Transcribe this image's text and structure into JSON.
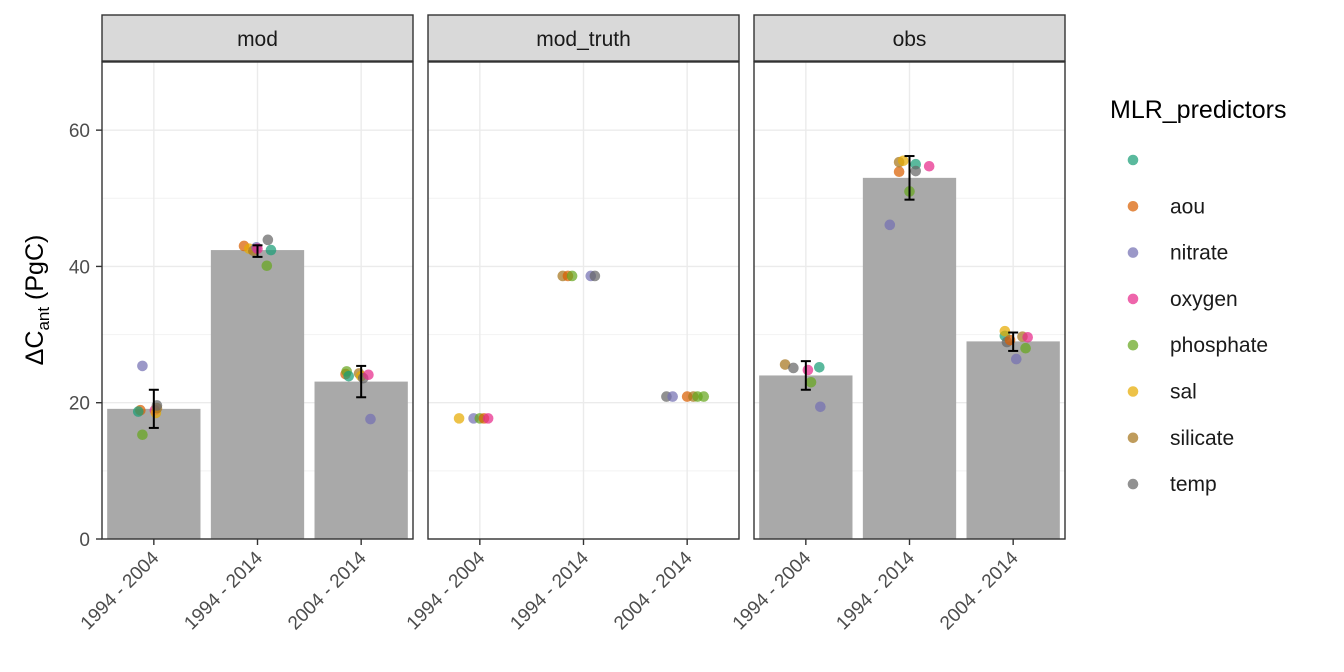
{
  "chart_data": {
    "type": "bar",
    "ylabel": {
      "prefix": "ΔC",
      "subscript": "ant",
      "suffix": " (PgC)"
    },
    "ylim": [
      0,
      70
    ],
    "yticks": [
      0,
      20,
      40,
      60
    ],
    "grid": true,
    "legend_position": "right",
    "legend": {
      "title": "MLR_predictors",
      "entries": [
        {
          "label": "",
          "color": "#1b9e77"
        },
        {
          "label": "aou",
          "color": "#d95f02"
        },
        {
          "label": "nitrate",
          "color": "#7570b3"
        },
        {
          "label": "oxygen",
          "color": "#e7298a"
        },
        {
          "label": "phosphate",
          "color": "#66a61e"
        },
        {
          "label": "sal",
          "color": "#e6ab02"
        },
        {
          "label": "silicate",
          "color": "#a6761d"
        },
        {
          "label": "temp",
          "color": "#666666"
        }
      ]
    },
    "bar_color": "#a9a9a9",
    "categories": [
      "1994 - 2004",
      "1994 - 2014",
      "2004 - 2014"
    ],
    "panels": [
      {
        "name": "mod",
        "bars": [
          19.1,
          42.4,
          23.1
        ],
        "errors": [
          [
            16.3,
            21.9
          ],
          [
            41.4,
            43.1
          ],
          [
            20.8,
            25.4
          ]
        ],
        "points": [
          {
            "cat": 0,
            "jitter": -0.13,
            "y": 18.9,
            "series": "aou"
          },
          {
            "cat": 0,
            "jitter": -0.11,
            "y": 25.4,
            "series": "nitrate"
          },
          {
            "cat": 0,
            "jitter": -0.11,
            "y": 15.3,
            "series": "phosphate"
          },
          {
            "cat": 0,
            "jitter": 0.01,
            "y": 18.9,
            "series": "oxygen"
          },
          {
            "cat": 0,
            "jitter": 0.02,
            "y": 18.5,
            "series": "sal"
          },
          {
            "cat": 0,
            "jitter": 0.03,
            "y": 19.2,
            "series": "silicate"
          },
          {
            "cat": 0,
            "jitter": 0.03,
            "y": 19.6,
            "series": "temp"
          },
          {
            "cat": 0,
            "jitter": -0.15,
            "y": 18.7,
            "series": ""
          },
          {
            "cat": 1,
            "jitter": -0.13,
            "y": 43.0,
            "series": "aou"
          },
          {
            "cat": 1,
            "jitter": -0.08,
            "y": 42.6,
            "series": "sal"
          },
          {
            "cat": 1,
            "jitter": -0.04,
            "y": 42.3,
            "series": "silicate"
          },
          {
            "cat": 1,
            "jitter": -0.01,
            "y": 42.8,
            "series": "nitrate"
          },
          {
            "cat": 1,
            "jitter": 0.0,
            "y": 42.6,
            "series": "oxygen"
          },
          {
            "cat": 1,
            "jitter": 0.09,
            "y": 40.1,
            "series": "phosphate"
          },
          {
            "cat": 1,
            "jitter": 0.1,
            "y": 43.9,
            "series": "temp"
          },
          {
            "cat": 1,
            "jitter": 0.13,
            "y": 42.4,
            "series": ""
          },
          {
            "cat": 2,
            "jitter": -0.15,
            "y": 24.2,
            "series": "aou"
          },
          {
            "cat": 2,
            "jitter": -0.14,
            "y": 24.6,
            "series": "phosphate"
          },
          {
            "cat": 2,
            "jitter": -0.12,
            "y": 23.9,
            "series": ""
          },
          {
            "cat": 2,
            "jitter": -0.02,
            "y": 24.3,
            "series": "silicate"
          },
          {
            "cat": 2,
            "jitter": 0.0,
            "y": 23.9,
            "series": "sal"
          },
          {
            "cat": 2,
            "jitter": 0.02,
            "y": 23.6,
            "series": "temp"
          },
          {
            "cat": 2,
            "jitter": 0.07,
            "y": 24.1,
            "series": "oxygen"
          },
          {
            "cat": 2,
            "jitter": 0.09,
            "y": 17.6,
            "series": "nitrate"
          }
        ]
      },
      {
        "name": "mod_truth",
        "bars": [],
        "errors": [],
        "points": [
          {
            "cat": 0,
            "jitter": -0.2,
            "y": 17.7,
            "series": "sal"
          },
          {
            "cat": 0,
            "jitter": -0.06,
            "y": 17.7,
            "series": "nitrate"
          },
          {
            "cat": 0,
            "jitter": 0.0,
            "y": 17.7,
            "series": "phosphate"
          },
          {
            "cat": 0,
            "jitter": 0.04,
            "y": 17.7,
            "series": "aou"
          },
          {
            "cat": 0,
            "jitter": 0.08,
            "y": 17.7,
            "series": "oxygen"
          },
          {
            "cat": 1,
            "jitter": -0.2,
            "y": 38.6,
            "series": "silicate"
          },
          {
            "cat": 1,
            "jitter": -0.15,
            "y": 38.6,
            "series": "aou"
          },
          {
            "cat": 1,
            "jitter": -0.11,
            "y": 38.6,
            "series": "phosphate"
          },
          {
            "cat": 1,
            "jitter": 0.07,
            "y": 38.6,
            "series": "nitrate"
          },
          {
            "cat": 1,
            "jitter": 0.11,
            "y": 38.6,
            "series": "temp"
          },
          {
            "cat": 2,
            "jitter": -0.2,
            "y": 20.9,
            "series": "temp"
          },
          {
            "cat": 2,
            "jitter": -0.14,
            "y": 20.9,
            "series": "nitrate"
          },
          {
            "cat": 2,
            "jitter": 0.0,
            "y": 20.9,
            "series": "aou"
          },
          {
            "cat": 2,
            "jitter": 0.06,
            "y": 20.9,
            "series": "silicate"
          },
          {
            "cat": 2,
            "jitter": 0.1,
            "y": 20.9,
            "series": "phosphate"
          },
          {
            "cat": 2,
            "jitter": 0.16,
            "y": 20.9,
            "series": "phosphate"
          }
        ]
      },
      {
        "name": "obs",
        "bars": [
          24.0,
          53.0,
          29.0
        ],
        "errors": [
          [
            21.9,
            26.1
          ],
          [
            49.8,
            56.2
          ],
          [
            27.6,
            30.3
          ]
        ],
        "points": [
          {
            "cat": 0,
            "jitter": -0.2,
            "y": 25.6,
            "series": "silicate"
          },
          {
            "cat": 0,
            "jitter": -0.12,
            "y": 25.1,
            "series": "temp"
          },
          {
            "cat": 0,
            "jitter": 0.02,
            "y": 24.8,
            "series": "oxygen"
          },
          {
            "cat": 0,
            "jitter": 0.05,
            "y": 23.0,
            "series": "phosphate"
          },
          {
            "cat": 0,
            "jitter": 0.13,
            "y": 25.2,
            "series": ""
          },
          {
            "cat": 0,
            "jitter": 0.14,
            "y": 19.4,
            "series": "nitrate"
          },
          {
            "cat": 1,
            "jitter": -0.19,
            "y": 46.1,
            "series": "nitrate"
          },
          {
            "cat": 1,
            "jitter": -0.1,
            "y": 53.9,
            "series": "aou"
          },
          {
            "cat": 1,
            "jitter": -0.1,
            "y": 55.3,
            "series": "silicate"
          },
          {
            "cat": 1,
            "jitter": -0.06,
            "y": 55.5,
            "series": "sal"
          },
          {
            "cat": 1,
            "jitter": 0.0,
            "y": 51.0,
            "series": "phosphate"
          },
          {
            "cat": 1,
            "jitter": 0.06,
            "y": 55.0,
            "series": ""
          },
          {
            "cat": 1,
            "jitter": 0.06,
            "y": 54.0,
            "series": "temp"
          },
          {
            "cat": 1,
            "jitter": 0.19,
            "y": 54.7,
            "series": "oxygen"
          },
          {
            "cat": 2,
            "jitter": -0.08,
            "y": 29.8,
            "series": ""
          },
          {
            "cat": 2,
            "jitter": -0.08,
            "y": 30.5,
            "series": "sal"
          },
          {
            "cat": 2,
            "jitter": -0.06,
            "y": 28.9,
            "series": "temp"
          },
          {
            "cat": 2,
            "jitter": -0.03,
            "y": 29.2,
            "series": "aou"
          },
          {
            "cat": 2,
            "jitter": 0.03,
            "y": 26.4,
            "series": "nitrate"
          },
          {
            "cat": 2,
            "jitter": 0.09,
            "y": 29.7,
            "series": "silicate"
          },
          {
            "cat": 2,
            "jitter": 0.12,
            "y": 28.0,
            "series": "phosphate"
          },
          {
            "cat": 2,
            "jitter": 0.14,
            "y": 29.6,
            "series": "oxygen"
          }
        ]
      }
    ]
  }
}
